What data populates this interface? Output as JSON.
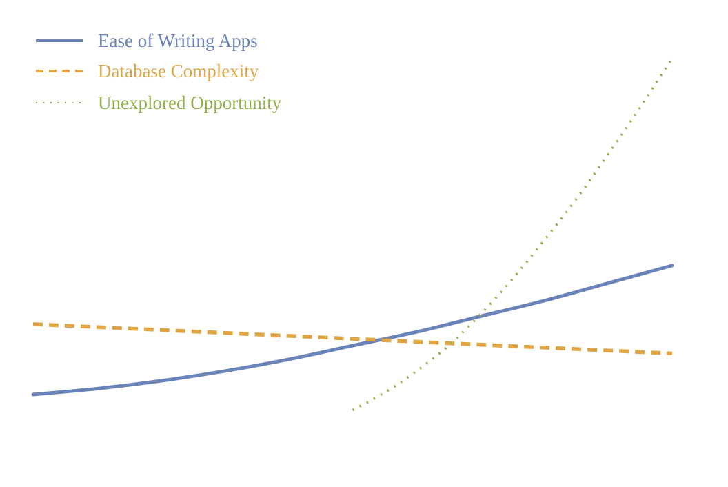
{
  "chart_data": {
    "type": "line",
    "title": "",
    "xlabel": "",
    "ylabel": "",
    "axes_visible": false,
    "grid": false,
    "legend_position": "top-left",
    "x_range": [
      0,
      10
    ],
    "y_range": [
      0,
      10
    ],
    "series": [
      {
        "name": "Ease of Writing Apps",
        "style": "solid",
        "color": "#6a83b9",
        "x": [
          0,
          1,
          2,
          3,
          4,
          5,
          6,
          7,
          8,
          9,
          10
        ],
        "y": [
          1.2,
          1.35,
          1.55,
          1.8,
          2.1,
          2.45,
          2.8,
          3.2,
          3.6,
          4.05,
          4.5
        ]
      },
      {
        "name": "Database Complexity",
        "style": "dashed",
        "color": "#e0a645",
        "x": [
          0,
          2,
          4,
          6,
          8,
          10
        ],
        "y": [
          3.0,
          2.85,
          2.7,
          2.55,
          2.4,
          2.25
        ]
      },
      {
        "name": "Unexplored Opportunity",
        "style": "dotted",
        "color": "#93b04f",
        "x": [
          5.0,
          5.5,
          6.0,
          6.5,
          7.0,
          7.5,
          8.0,
          8.5,
          9.0,
          9.5,
          10.0
        ],
        "y": [
          0.8,
          1.25,
          1.8,
          2.45,
          3.25,
          4.15,
          5.15,
          6.2,
          7.35,
          8.55,
          9.8
        ]
      }
    ]
  }
}
